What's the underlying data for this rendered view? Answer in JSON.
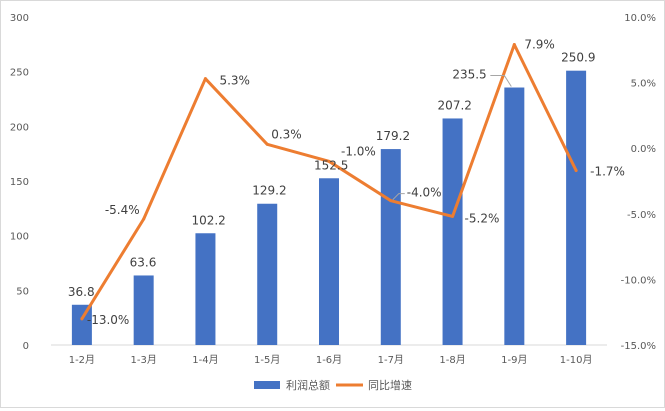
{
  "chart_data": {
    "type": "bar+line",
    "categories": [
      "1-2月",
      "1-3月",
      "1-4月",
      "1-5月",
      "1-6月",
      "1-7月",
      "1-8月",
      "1-9月",
      "1-10月"
    ],
    "series": [
      {
        "name": "利润总额",
        "type": "bar",
        "axis": "left",
        "color": "#4472C4",
        "values": [
          36.8,
          63.6,
          102.2,
          129.2,
          152.5,
          179.2,
          207.2,
          235.5,
          250.9
        ],
        "labels": [
          "36.8",
          "63.6",
          "102.2",
          "129.2",
          "152.5",
          "179.2",
          "207.2",
          "235.5",
          "250.9"
        ]
      },
      {
        "name": "同比增速",
        "type": "line",
        "axis": "right",
        "color": "#ED7D31",
        "values": [
          -13.0,
          -5.4,
          5.3,
          0.3,
          -1.0,
          -4.0,
          -5.2,
          7.9,
          -1.7
        ],
        "labels": [
          "-13.0%",
          "-5.4%",
          "5.3%",
          "0.3%",
          "-1.0%",
          "-4.0%",
          "-5.2%",
          "7.9%",
          "-1.7%"
        ]
      }
    ],
    "y_left": {
      "ylim": [
        0,
        300
      ],
      "ticks": [
        0,
        50,
        100,
        150,
        200,
        250,
        300
      ],
      "tick_labels": [
        "0",
        "50",
        "100",
        "150",
        "200",
        "250",
        "300"
      ]
    },
    "y_right": {
      "ylim": [
        -15.0,
        10.0
      ],
      "ticks": [
        -15.0,
        -10.0,
        -5.0,
        0.0,
        5.0,
        10.0
      ],
      "tick_labels": [
        "-15.0%",
        "-10.0%",
        "-5.0%",
        "0.0%",
        "5.0%",
        "10.0%"
      ]
    },
    "title": "",
    "xlabel": "",
    "ylabel": "",
    "grid": false,
    "legend": "bottom"
  }
}
